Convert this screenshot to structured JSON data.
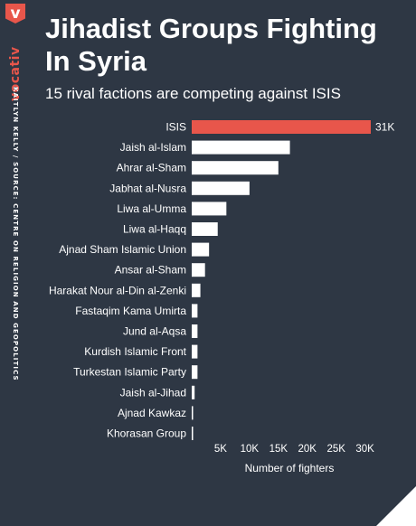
{
  "brand": {
    "mark": "v",
    "name": "vocativ"
  },
  "byline": "KAITLYN KELLY / SOURCE: CENTRE ON RELIGION AND GEOPOLITICS",
  "colors": {
    "background": "#2e3744",
    "bar": "#ffffff",
    "highlight": "#e8564b"
  },
  "chart_data": {
    "type": "bar",
    "orientation": "horizontal",
    "title": "Jihadist Groups Fighting In Syria",
    "subtitle": "15 rival factions are competing against ISIS",
    "xlabel": "Number of fighters",
    "ylabel": "",
    "xlim": [
      0,
      31000
    ],
    "xticks": [
      5000,
      10000,
      15000,
      20000,
      25000,
      30000
    ],
    "xtick_labels": [
      "5K",
      "10K",
      "15K",
      "20K",
      "25K",
      "30K"
    ],
    "grid": false,
    "highlight_index": 0,
    "highlight_value_label": "31K",
    "categories": [
      "ISIS",
      "Jaish al-Islam",
      "Ahrar al-Sham",
      "Jabhat al-Nusra",
      "Liwa al-Umma",
      "Liwa al-Haqq",
      "Ajnad Sham Islamic Union",
      "Ansar al-Sham",
      "Harakat Nour al-Din al-Zenki",
      "Fastaqim Kama Umirta",
      "Jund al-Aqsa",
      "Kurdish Islamic Front",
      "Turkestan Islamic Party",
      "Jaish al-Jihad",
      "Ajnad Kawkaz",
      "Khorasan Group"
    ],
    "values": [
      31000,
      17000,
      15000,
      10000,
      6000,
      4500,
      3000,
      2300,
      1500,
      1000,
      1000,
      1000,
      1000,
      500,
      150,
      100
    ]
  }
}
